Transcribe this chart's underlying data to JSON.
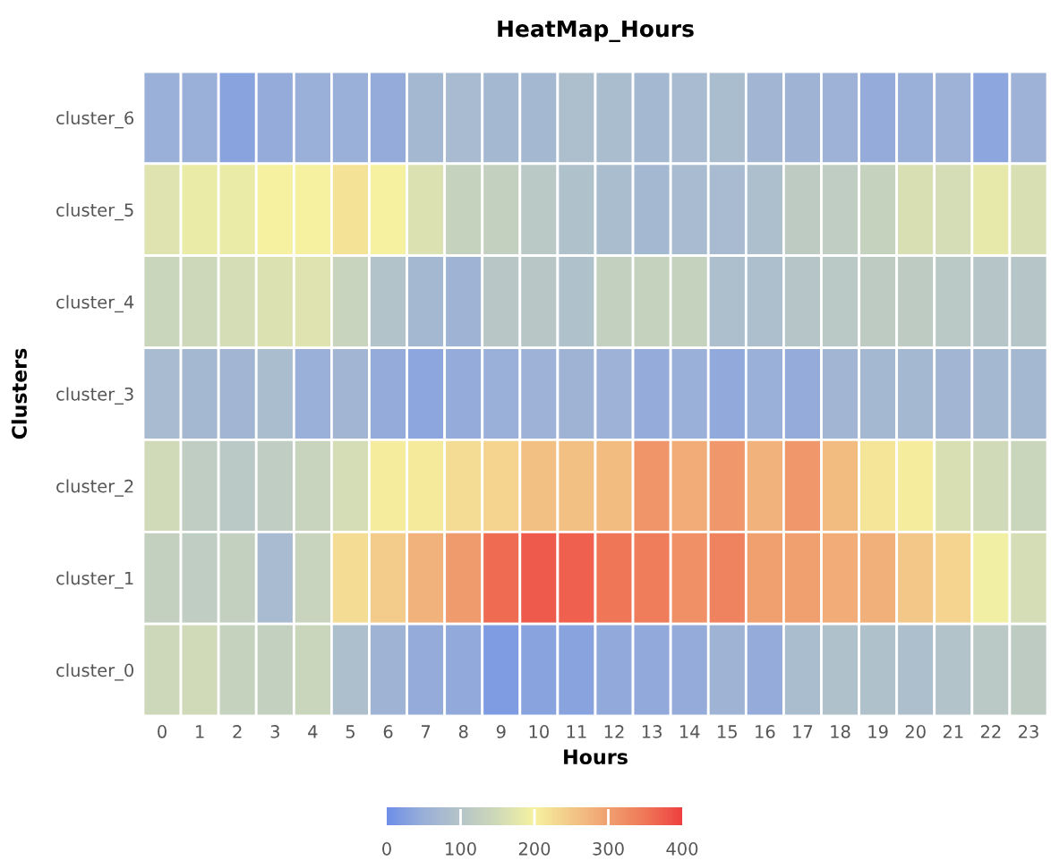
{
  "chart_data": {
    "type": "heatmap",
    "title": "HeatMap_Hours",
    "xlabel": "Hours",
    "ylabel": "Clusters",
    "categories": [
      "0",
      "1",
      "2",
      "3",
      "4",
      "5",
      "6",
      "7",
      "8",
      "9",
      "10",
      "11",
      "12",
      "13",
      "14",
      "15",
      "16",
      "17",
      "18",
      "19",
      "20",
      "21",
      "22",
      "23"
    ],
    "y_categories": [
      "cluster_6",
      "cluster_5",
      "cluster_4",
      "cluster_3",
      "cluster_2",
      "cluster_1",
      "cluster_0"
    ],
    "cells": [
      [
        50,
        50,
        30,
        45,
        50,
        50,
        45,
        70,
        75,
        70,
        70,
        85,
        80,
        70,
        75,
        80,
        65,
        60,
        55,
        45,
        50,
        55,
        35,
        55
      ],
      [
        170,
        185,
        185,
        200,
        200,
        220,
        200,
        165,
        130,
        125,
        110,
        90,
        80,
        70,
        75,
        75,
        85,
        115,
        120,
        130,
        160,
        155,
        180,
        160
      ],
      [
        140,
        145,
        155,
        165,
        170,
        135,
        95,
        70,
        60,
        105,
        105,
        90,
        125,
        130,
        130,
        85,
        85,
        100,
        110,
        115,
        115,
        110,
        100,
        100
      ],
      [
        75,
        70,
        65,
        80,
        50,
        65,
        45,
        35,
        45,
        50,
        55,
        60,
        55,
        45,
        50,
        40,
        50,
        45,
        65,
        70,
        70,
        65,
        70,
        70
      ],
      [
        150,
        120,
        110,
        120,
        135,
        155,
        205,
        210,
        225,
        235,
        260,
        260,
        265,
        315,
        285,
        310,
        275,
        310,
        265,
        215,
        205,
        160,
        150,
        140
      ],
      [
        125,
        120,
        125,
        75,
        135,
        225,
        245,
        275,
        305,
        360,
        375,
        370,
        350,
        345,
        320,
        335,
        300,
        300,
        285,
        280,
        250,
        235,
        195,
        155
      ],
      [
        145,
        150,
        130,
        125,
        140,
        85,
        60,
        45,
        40,
        20,
        30,
        30,
        40,
        40,
        45,
        60,
        45,
        80,
        90,
        90,
        85,
        95,
        110,
        115
      ]
    ],
    "clim": [
      0,
      400
    ],
    "cticks": [
      0,
      100,
      200,
      300,
      400
    ]
  }
}
